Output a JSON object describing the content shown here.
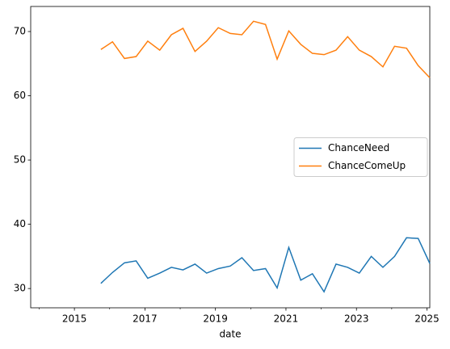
{
  "chart_data": {
    "type": "line",
    "x_label": "date",
    "x": [
      2015.75,
      2016.08,
      2016.42,
      2016.75,
      2017.08,
      2017.42,
      2017.75,
      2018.08,
      2018.42,
      2018.75,
      2019.08,
      2019.42,
      2019.75,
      2020.08,
      2020.42,
      2020.75,
      2021.08,
      2021.42,
      2021.75,
      2022.08,
      2022.42,
      2022.75,
      2023.08,
      2023.42,
      2023.75,
      2024.08,
      2024.42,
      2024.75,
      2025.08
    ],
    "series": [
      {
        "name": "ChanceNeed",
        "color": "#1f77b4",
        "values": [
          30.8,
          32.5,
          34.0,
          34.3,
          31.6,
          32.4,
          33.3,
          32.9,
          33.8,
          32.4,
          33.1,
          33.5,
          34.8,
          32.8,
          33.1,
          30.1,
          36.4,
          31.3,
          32.3,
          29.5,
          33.8,
          33.3,
          32.4,
          35.0,
          33.3,
          35.0,
          37.9,
          37.8,
          33.9
        ]
      },
      {
        "name": "ChanceComeUp",
        "color": "#ff7f0e",
        "values": [
          67.2,
          68.4,
          65.8,
          66.1,
          68.5,
          67.1,
          69.5,
          70.5,
          66.9,
          68.5,
          70.6,
          69.7,
          69.5,
          71.6,
          71.1,
          65.7,
          70.1,
          68.0,
          66.6,
          66.4,
          67.1,
          69.2,
          67.1,
          66.1,
          64.5,
          67.7,
          67.4,
          64.7,
          62.8
        ]
      }
    ],
    "xlim": [
      2013.76,
      2025.08
    ],
    "xticks": [
      2015,
      2017,
      2019,
      2021,
      2023,
      2025
    ],
    "xminorticks": [
      2014,
      2016,
      2018,
      2020,
      2022,
      2024
    ],
    "ylim": [
      27.0,
      73.9
    ],
    "yticks": [
      30,
      40,
      50,
      60,
      70
    ],
    "legend": "center right"
  }
}
